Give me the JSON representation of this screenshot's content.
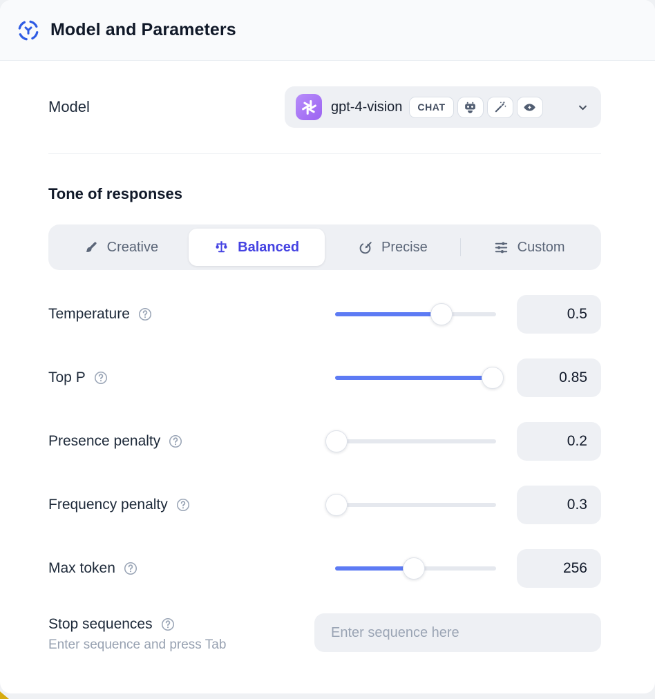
{
  "colors": {
    "accent_blue": "#4442e2",
    "slider_blue": "#5d7bf4",
    "openai_purple": "#a678f5",
    "control_bg": "#eef0f4"
  },
  "header": {
    "title": "Model and Parameters",
    "icon": "model-nodes-icon"
  },
  "model": {
    "label": "Model",
    "selected_name": "gpt-4-vision",
    "type_badge": "CHAT",
    "provider_icon": "openai-logo-icon",
    "capability_icons": [
      "robot-icon",
      "wand-sparkles-icon",
      "eye-sparkle-icon"
    ]
  },
  "tone": {
    "heading": "Tone of responses",
    "tabs": [
      {
        "label": "Creative",
        "icon": "paintbrush-icon",
        "selected": false
      },
      {
        "label": "Balanced",
        "icon": "balance-scale-icon",
        "selected": true
      },
      {
        "label": "Precise",
        "icon": "target-arrow-icon",
        "selected": false
      },
      {
        "label": "Custom",
        "icon": "sliders-icon",
        "selected": false
      }
    ]
  },
  "parameters": [
    {
      "label": "Temperature",
      "value": "0.5",
      "slider_pct": 66
    },
    {
      "label": "Top P",
      "value": "0.85",
      "slider_pct": 98
    },
    {
      "label": "Presence penalty",
      "value": "0.2",
      "slider_pct": 1
    },
    {
      "label": "Frequency penalty",
      "value": "0.3",
      "slider_pct": 1
    },
    {
      "label": "Max token",
      "value": "256",
      "slider_pct": 49
    }
  ],
  "stop_sequences": {
    "label": "Stop sequences",
    "hint": "Enter sequence and press Tab",
    "placeholder": "Enter sequence here"
  }
}
